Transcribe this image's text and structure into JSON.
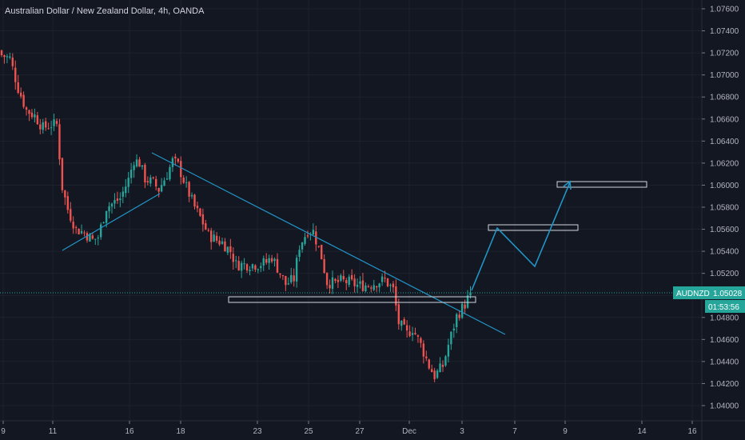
{
  "title": "Australian Dollar / New Zealand Dollar, 4h, OANDA",
  "price_axis": {
    "ticks": [
      "1.07600",
      "1.07400",
      "1.07200",
      "1.07000",
      "1.06800",
      "1.06600",
      "1.06400",
      "1.06200",
      "1.06000",
      "1.05800",
      "1.05600",
      "1.05400",
      "1.05200",
      "1.05000",
      "1.04800",
      "1.04600",
      "1.04400",
      "1.04200",
      "1.04000"
    ]
  },
  "time_axis": {
    "ticks": [
      "9",
      "11",
      "16",
      "18",
      "23",
      "25",
      "27",
      "Dec",
      "3",
      "7",
      "9",
      "14",
      "16"
    ]
  },
  "current_price": {
    "symbol": "AUDNZD",
    "value": "1.05028",
    "countdown": "01:53:56"
  },
  "colors": {
    "background": "#131722",
    "up": "#26a69a",
    "down": "#ef5350",
    "trendline": "#2196c8",
    "projection": "#2196c8",
    "zone": "#d1d4dc",
    "tag": "#26a69a"
  },
  "chart_data": {
    "type": "candlestick",
    "title": "Australian Dollar / New Zealand Dollar, 4h, OANDA",
    "interval": "4h",
    "ylim": [
      1.0392,
      1.0772
    ],
    "x_ticks": [
      "9",
      "11",
      "16",
      "18",
      "23",
      "25",
      "27",
      "Dec",
      "3",
      "7",
      "9",
      "14",
      "16"
    ],
    "close_path": [
      [
        0,
        1.0718
      ],
      [
        3,
        1.0715
      ],
      [
        6,
        1.0688
      ],
      [
        9,
        1.0668
      ],
      [
        12,
        1.0663
      ],
      [
        15,
        1.0652
      ],
      [
        18,
        1.0655
      ],
      [
        20,
        1.0655
      ],
      [
        22,
        1.0598
      ],
      [
        24,
        1.0578
      ],
      [
        27,
        1.056
      ],
      [
        30,
        1.0557
      ],
      [
        33,
        1.055
      ],
      [
        35,
        1.0553
      ],
      [
        38,
        1.058
      ],
      [
        40,
        1.0583
      ],
      [
        43,
        1.0588
      ],
      [
        46,
        1.0605
      ],
      [
        48,
        1.0623
      ],
      [
        50,
        1.062
      ],
      [
        52,
        1.0606
      ],
      [
        55,
        1.0602
      ],
      [
        57,
        1.0596
      ],
      [
        60,
        1.061
      ],
      [
        62,
        1.0622
      ],
      [
        64,
        1.0618
      ],
      [
        67,
        1.0598
      ],
      [
        70,
        1.058
      ],
      [
        72,
        1.0571
      ],
      [
        75,
        1.0555
      ],
      [
        78,
        1.055
      ],
      [
        80,
        1.0548
      ],
      [
        83,
        1.054
      ],
      [
        85,
        1.0528
      ],
      [
        88,
        1.0528
      ],
      [
        91,
        1.0528
      ],
      [
        93,
        1.0528
      ],
      [
        96,
        1.053
      ],
      [
        98,
        1.0535
      ],
      [
        100,
        1.0525
      ],
      [
        103,
        1.051
      ],
      [
        106,
        1.0515
      ],
      [
        108,
        1.0545
      ],
      [
        111,
        1.0559
      ],
      [
        113,
        1.0558
      ],
      [
        116,
        1.0535
      ],
      [
        118,
        1.0512
      ],
      [
        121,
        1.0511
      ],
      [
        123,
        1.0513
      ],
      [
        126,
        1.0512
      ],
      [
        129,
        1.0509
      ],
      [
        131,
        1.0509
      ],
      [
        134,
        1.051
      ],
      [
        136,
        1.0512
      ],
      [
        139,
        1.0514
      ],
      [
        142,
        1.0505
      ],
      [
        144,
        1.0475
      ],
      [
        147,
        1.0465
      ],
      [
        149,
        1.047
      ],
      [
        152,
        1.0455
      ],
      [
        155,
        1.0436
      ],
      [
        157,
        1.0427
      ],
      [
        160,
        1.0436
      ],
      [
        162,
        1.0455
      ],
      [
        165,
        1.0481
      ],
      [
        168,
        1.0492
      ],
      [
        170,
        1.0502
      ]
    ],
    "series": [
      {
        "name": "AUDNZD",
        "last": 1.05028
      }
    ],
    "trendlines": [
      {
        "from": [
          1.0538,
          "11"
        ],
        "to": [
          1.0605,
          "16"
        ]
      },
      {
        "from": [
          1.063,
          "16"
        ],
        "to": [
          1.0466,
          "7"
        ]
      }
    ],
    "zones": [
      {
        "label": "",
        "price": 1.0496
      },
      {
        "label": "",
        "price": 1.0563
      },
      {
        "label": "",
        "price": 1.0602
      }
    ],
    "projection": [
      1.0505,
      1.0563,
      1.0528,
      1.0604
    ],
    "grid": true
  }
}
